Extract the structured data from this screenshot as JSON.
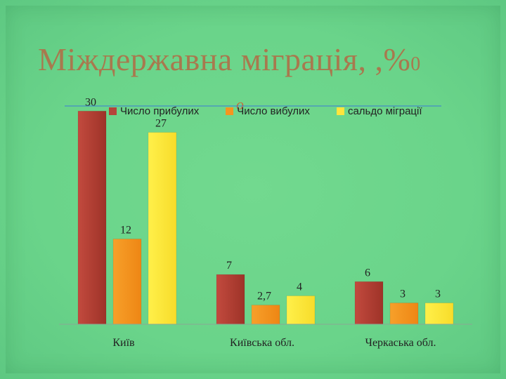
{
  "slide": {
    "title": "Міждержавна міграція, ,%",
    "title_suffix": "0",
    "subtitle": "о"
  },
  "colors": {
    "background": "#6ad48a",
    "title": "#a8794e",
    "series_arrivals": "#b5443a",
    "series_departures": "#f5951f",
    "series_balance": "#ffe53d"
  },
  "chart_data": {
    "type": "bar",
    "categories": [
      "Київ",
      "Київська обл.",
      "Черкаська обл."
    ],
    "series": [
      {
        "name": "Число прибулих",
        "values": [
          30,
          7,
          6
        ],
        "labels": [
          "30",
          "7",
          "6"
        ]
      },
      {
        "name": "Число вибулих",
        "values": [
          12,
          2.7,
          3
        ],
        "labels": [
          "12",
          "2,7",
          "3"
        ]
      },
      {
        "name": "сальдо міграції",
        "values": [
          27,
          4,
          3
        ],
        "labels": [
          "27",
          "4",
          "3"
        ]
      }
    ],
    "ylim": [
      0,
      32
    ],
    "legend_position": "top",
    "grid": false
  }
}
